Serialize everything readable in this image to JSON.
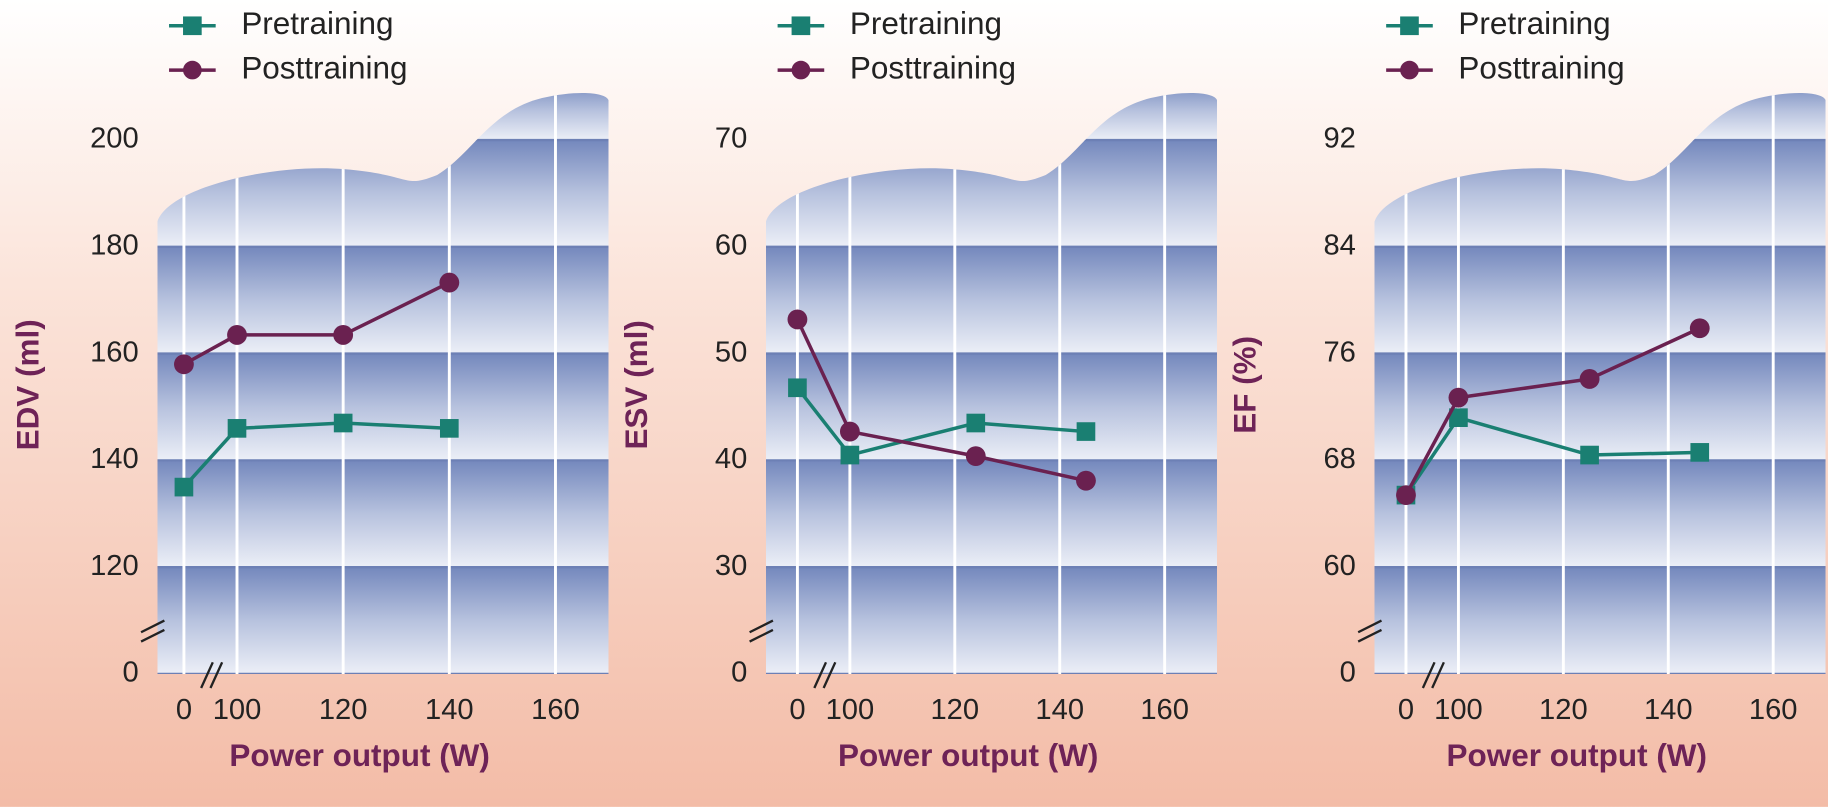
{
  "chart_data": [
    {
      "type": "line",
      "ylabel": "EDV (ml)",
      "xlabel": "Power output (W)",
      "x": [
        0,
        100,
        120,
        140
      ],
      "xlim": [
        -5,
        170
      ],
      "xticks": [
        0,
        100,
        120,
        140,
        160
      ],
      "xbreak": [
        0,
        100
      ],
      "ylim": [
        0,
        200
      ],
      "yticks": [
        0,
        120,
        140,
        160,
        180,
        200
      ],
      "ybreak": [
        0,
        120
      ],
      "series": [
        {
          "name": "Pretraining",
          "color": "#1a7f72",
          "marker": "square",
          "values": [
            135,
            146,
            147,
            146
          ]
        },
        {
          "name": "Posttraining",
          "color": "#6a2150",
          "marker": "circle",
          "values": [
            158,
            163.5,
            163.5,
            173.3
          ]
        }
      ]
    },
    {
      "type": "line",
      "ylabel": "ESV (ml)",
      "xlabel": "Power output (W)",
      "x": [
        0,
        100,
        124,
        145
      ],
      "xlim": [
        -6,
        170
      ],
      "xticks": [
        0,
        100,
        120,
        140,
        160
      ],
      "xbreak": [
        0,
        100
      ],
      "ylim": [
        0,
        70
      ],
      "yticks": [
        0,
        30,
        40,
        50,
        60,
        70
      ],
      "ybreak": [
        0,
        30
      ],
      "series": [
        {
          "name": "Pretraining",
          "color": "#1a7f72",
          "marker": "square",
          "values": [
            46.8,
            40.5,
            43.5,
            42.7
          ]
        },
        {
          "name": "Posttraining",
          "color": "#6a2150",
          "marker": "circle",
          "values": [
            53.2,
            42.7,
            40.4,
            38.1
          ]
        }
      ]
    },
    {
      "type": "line",
      "ylabel": "EF (%)",
      "xlabel": "Power output (W)",
      "x": [
        0,
        100,
        125,
        146
      ],
      "xlim": [
        -6,
        170
      ],
      "xticks": [
        0,
        100,
        120,
        140,
        160
      ],
      "xbreak": [
        0,
        100
      ],
      "ylim": [
        0,
        92
      ],
      "yticks": [
        0,
        60,
        68,
        76,
        84,
        92
      ],
      "ybreak": [
        0,
        60
      ],
      "series": [
        {
          "name": "Pretraining",
          "color": "#1a7f72",
          "marker": "square",
          "values": [
            65.4,
            71.2,
            68.4,
            68.6
          ]
        },
        {
          "name": "Posttraining",
          "color": "#6a2150",
          "marker": "circle",
          "values": [
            65.4,
            72.7,
            74.1,
            77.9
          ]
        }
      ]
    }
  ]
}
